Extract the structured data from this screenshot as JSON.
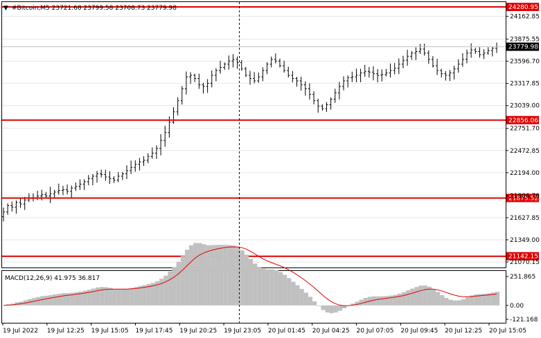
{
  "chart_header": {
    "symbol": "#Bitcoin,M5",
    "open": "23721.68",
    "high": "23799.58",
    "low": "23708.73",
    "close": "23779.98"
  },
  "price_axis": {
    "ticks": [
      "24162.85",
      "23875.55",
      "23596.70",
      "23317.85",
      "23039.00",
      "22751.70",
      "22472.85",
      "22194.00",
      "21906.70",
      "21627.85",
      "21349.00",
      "21070.15"
    ]
  },
  "price_labels": {
    "current": "23779.98",
    "levels": [
      "24280.95",
      "22856.06",
      "21875.52",
      "21142.15"
    ]
  },
  "macd": {
    "title": "MACD(12,26,9) 41.975 36.817",
    "ticks": [
      "251.865",
      "0.00",
      "-121.168"
    ]
  },
  "time_axis": {
    "labels": [
      "19 Jul 2022",
      "19 Jul 12:25",
      "19 Jul 15:05",
      "19 Jul 17:45",
      "19 Jul 20:25",
      "19 Jul 23:05",
      "20 Jul 01:45",
      "20 Jul 04:25",
      "20 Jul 07:05",
      "20 Jul 09:45",
      "20 Jul 12:25",
      "20 Jul 15:05"
    ]
  },
  "colors": {
    "level_line": "#e00000",
    "level_label_bg": "#e00000",
    "current_label_bg": "#000000",
    "histogram": "#c0c0c0",
    "signal": "#e00000"
  },
  "chart_data": {
    "type": "ohlc",
    "price_axis_range": [
      21070.15,
      24280.95
    ],
    "horizontal_levels": [
      24280.95,
      22856.06,
      21875.52,
      21142.15
    ],
    "closes": [
      21700,
      21780,
      21760,
      21820,
      21800,
      21850,
      21870,
      21880,
      21900,
      21920,
      21900,
      21930,
      21950,
      21970,
      21980,
      21960,
      22000,
      22020,
      22050,
      22080,
      22120,
      22150,
      22180,
      22170,
      22140,
      22120,
      22100,
      22150,
      22180,
      22220,
      22260,
      22300,
      22330,
      22350,
      22400,
      22440,
      22500,
      22600,
      22700,
      22830,
      22960,
      23100,
      23250,
      23400,
      23420,
      23380,
      23300,
      23280,
      23320,
      23420,
      23480,
      23520,
      23560,
      23600,
      23620,
      23580,
      23500,
      23420,
      23380,
      23350,
      23400,
      23480,
      23560,
      23620,
      23600,
      23540,
      23480,
      23420,
      23380,
      23350,
      23300,
      23250,
      23180,
      23100,
      23030,
      23000,
      23050,
      23120,
      23200,
      23280,
      23350,
      23390,
      23400,
      23420,
      23450,
      23470,
      23460,
      23440,
      23420,
      23430,
      23450,
      23480,
      23510,
      23560,
      23610,
      23660,
      23700,
      23720,
      23750,
      23700,
      23620,
      23540,
      23480,
      23440,
      23420,
      23450,
      23500,
      23560,
      23620,
      23700,
      23740,
      23720,
      23680,
      23700,
      23730,
      23760,
      23780
    ],
    "macd_range": [
      -121.168,
      251.865
    ],
    "macd_last": 41.975,
    "signal_last": 36.817
  }
}
